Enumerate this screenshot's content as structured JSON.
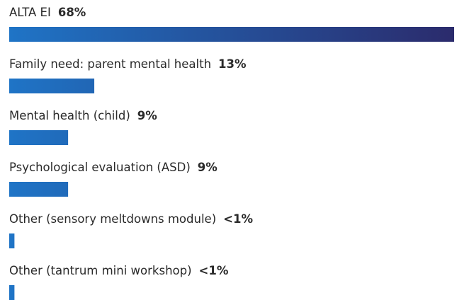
{
  "chart_data": {
    "type": "bar",
    "orientation": "horizontal",
    "categories": [
      "ALTA EI",
      "Family need: parent mental health",
      "Mental health (child)",
      "Psychological evaluation (ASD)",
      "Other (sensory meltdowns module)",
      "Other (tantrum mini workshop)"
    ],
    "values": [
      68,
      13,
      9,
      9,
      0.8,
      0.8
    ],
    "value_labels": [
      "68%",
      "13%",
      "9%",
      "9%",
      "<1%",
      "<1%"
    ],
    "gradient": [
      "#1f74c6",
      "#2b2b6c"
    ]
  }
}
